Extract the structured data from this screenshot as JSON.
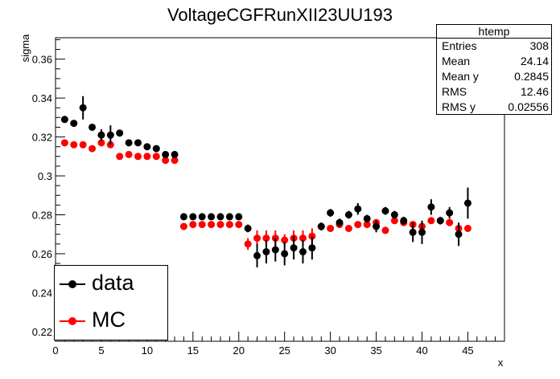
{
  "chart_data": {
    "type": "scatter",
    "title": "VoltageCGFRunXII23UU193",
    "xlabel": "x",
    "ylabel": "sigma",
    "xlim": [
      0,
      49
    ],
    "ylim": [
      0.215,
      0.371
    ],
    "xticks": [
      "0",
      "5",
      "10",
      "15",
      "20",
      "25",
      "30",
      "35",
      "40",
      "45"
    ],
    "yticks": [
      "0.22",
      "0.24",
      "0.26",
      "0.28",
      "0.3",
      "0.32",
      "0.34",
      "0.36"
    ],
    "series": [
      {
        "name": "data",
        "color": "#000000",
        "points": [
          [
            1,
            0.329,
            0.0015
          ],
          [
            2,
            0.327,
            0.0015
          ],
          [
            3,
            0.335,
            0.006
          ],
          [
            4,
            0.325,
            0.0015
          ],
          [
            5,
            0.321,
            0.003
          ],
          [
            6,
            0.321,
            0.005
          ],
          [
            7,
            0.322,
            0.0015
          ],
          [
            8,
            0.317,
            0.0015
          ],
          [
            9,
            0.317,
            0.0015
          ],
          [
            10,
            0.315,
            0.0015
          ],
          [
            11,
            0.314,
            0.0015
          ],
          [
            12,
            0.311,
            0.0015
          ],
          [
            13,
            0.311,
            0.0015
          ],
          [
            14,
            0.279,
            0.0008
          ],
          [
            15,
            0.279,
            0.0008
          ],
          [
            16,
            0.279,
            0.0008
          ],
          [
            17,
            0.279,
            0.0008
          ],
          [
            18,
            0.279,
            0.0008
          ],
          [
            19,
            0.279,
            0.0008
          ],
          [
            20,
            0.279,
            0.0008
          ],
          [
            21,
            0.273,
            0.002
          ],
          [
            22,
            0.259,
            0.006
          ],
          [
            23,
            0.261,
            0.006
          ],
          [
            24,
            0.262,
            0.006
          ],
          [
            25,
            0.26,
            0.006
          ],
          [
            26,
            0.263,
            0.006
          ],
          [
            27,
            0.261,
            0.006
          ],
          [
            28,
            0.263,
            0.006
          ],
          [
            29,
            0.274,
            0.002
          ],
          [
            30,
            0.281,
            0.002
          ],
          [
            31,
            0.276,
            0.002
          ],
          [
            32,
            0.28,
            0.002
          ],
          [
            33,
            0.283,
            0.003
          ],
          [
            34,
            0.278,
            0.002
          ],
          [
            35,
            0.274,
            0.003
          ],
          [
            36,
            0.282,
            0.002
          ],
          [
            37,
            0.28,
            0.002
          ],
          [
            38,
            0.277,
            0.002
          ],
          [
            39,
            0.271,
            0.005
          ],
          [
            40,
            0.271,
            0.006
          ],
          [
            41,
            0.284,
            0.004
          ],
          [
            42,
            0.277,
            0.002
          ],
          [
            43,
            0.281,
            0.003
          ],
          [
            44,
            0.27,
            0.006
          ],
          [
            45,
            0.286,
            0.008
          ]
        ]
      },
      {
        "name": "MC",
        "color": "#ff0000",
        "points": [
          [
            1,
            0.317,
            0
          ],
          [
            2,
            0.316,
            0
          ],
          [
            3,
            0.316,
            0
          ],
          [
            4,
            0.314,
            0
          ],
          [
            5,
            0.317,
            0
          ],
          [
            6,
            0.316,
            0
          ],
          [
            7,
            0.31,
            0
          ],
          [
            8,
            0.311,
            0
          ],
          [
            9,
            0.31,
            0
          ],
          [
            10,
            0.31,
            0
          ],
          [
            11,
            0.31,
            0
          ],
          [
            12,
            0.308,
            0
          ],
          [
            13,
            0.308,
            0
          ],
          [
            14,
            0.274,
            0
          ],
          [
            15,
            0.275,
            0
          ],
          [
            16,
            0.275,
            0
          ],
          [
            17,
            0.275,
            0
          ],
          [
            18,
            0.275,
            0
          ],
          [
            19,
            0.275,
            0
          ],
          [
            20,
            0.275,
            0
          ],
          [
            21,
            0.265,
            0.003
          ],
          [
            22,
            0.268,
            0.004
          ],
          [
            23,
            0.268,
            0.004
          ],
          [
            24,
            0.268,
            0.004
          ],
          [
            25,
            0.267,
            0.003
          ],
          [
            26,
            0.268,
            0.004
          ],
          [
            27,
            0.268,
            0.004
          ],
          [
            28,
            0.269,
            0.004
          ],
          [
            29,
            0.274,
            0.002
          ],
          [
            30,
            0.273,
            0.001
          ],
          [
            31,
            0.275,
            0.001
          ],
          [
            32,
            0.273,
            0.001
          ],
          [
            33,
            0.275,
            0.001
          ],
          [
            34,
            0.275,
            0.001
          ],
          [
            35,
            0.276,
            0.001
          ],
          [
            36,
            0.272,
            0.001
          ],
          [
            37,
            0.277,
            0.001
          ],
          [
            38,
            0.276,
            0.001
          ],
          [
            39,
            0.275,
            0.001
          ],
          [
            40,
            0.274,
            0.002
          ],
          [
            41,
            0.277,
            0.001
          ],
          [
            42,
            0.277,
            0.001
          ],
          [
            43,
            0.276,
            0.001
          ],
          [
            44,
            0.273,
            0.002
          ],
          [
            45,
            0.273,
            0.001
          ]
        ]
      }
    ],
    "grid": false,
    "legend_position": "bottom-left"
  },
  "stats_box": {
    "title": "htemp",
    "rows": [
      {
        "label": "Entries",
        "value": "308"
      },
      {
        "label": "Mean",
        "value": "24.14"
      },
      {
        "label": "Mean y",
        "value": "0.2845"
      },
      {
        "label": "RMS",
        "value": "12.46"
      },
      {
        "label": "RMS y",
        "value": "0.02556"
      }
    ]
  },
  "legend": {
    "items": [
      {
        "label": "data",
        "color": "#000000"
      },
      {
        "label": "MC",
        "color": "#ff0000"
      }
    ]
  }
}
